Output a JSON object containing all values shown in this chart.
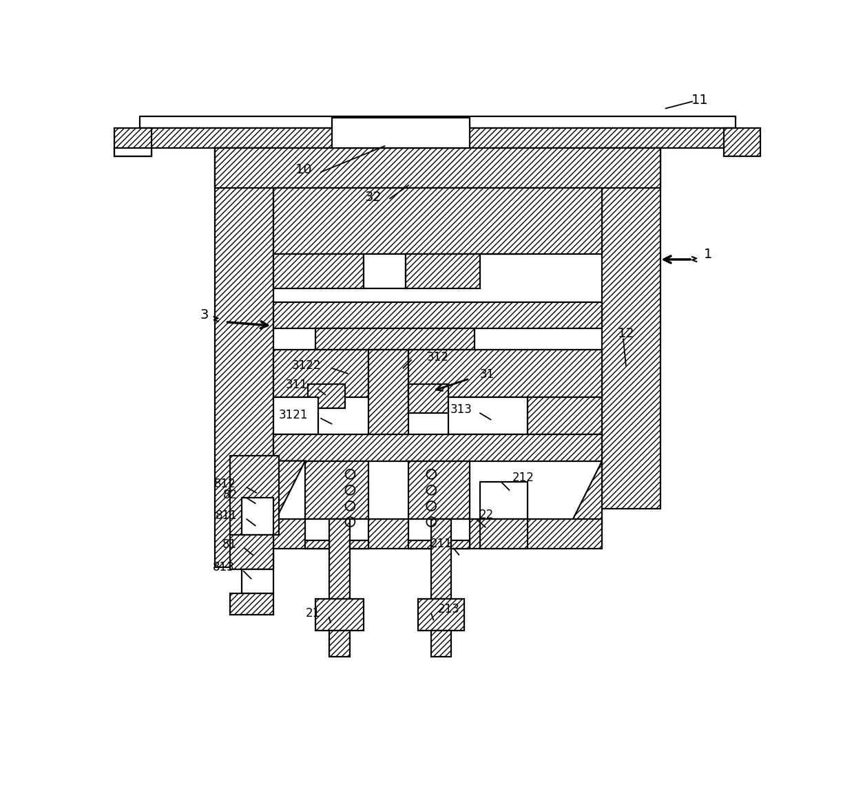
{
  "bg": "#ffffff",
  "lc": "#000000",
  "H": "////",
  "fw": 12.4,
  "fh": 11.52,
  "dpi": 100,
  "IH": 1152
}
